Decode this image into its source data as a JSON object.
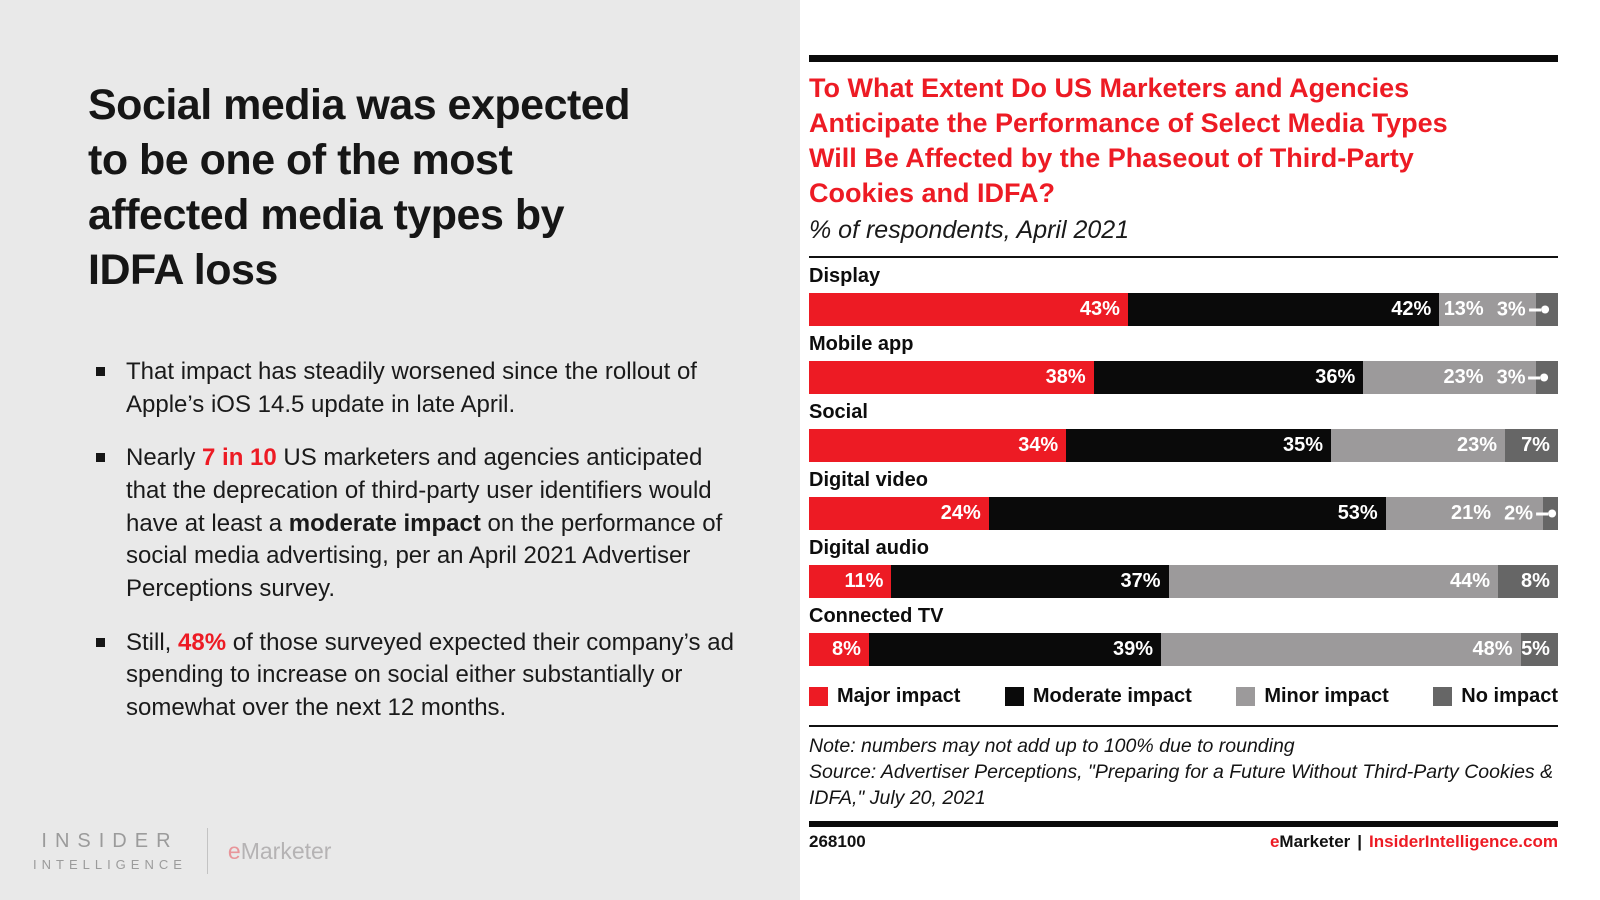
{
  "left_panel": {
    "headline_lines": [
      "Social media was expected",
      "to be one of the most",
      "affected media types by",
      "IDFA loss"
    ],
    "bullets": [
      [
        {
          "t": "That impact has steadily worsened since the rollout of Apple’s iOS 14.5 update in late April.",
          "s": "n"
        }
      ],
      [
        {
          "t": "Nearly ",
          "s": "n"
        },
        {
          "t": "7 in 10",
          "s": "rb"
        },
        {
          "t": " US marketers and agencies anticipated that the deprecation of third-party user identifiers would have at least a ",
          "s": "n"
        },
        {
          "t": "moderate impact",
          "s": "b"
        },
        {
          "t": " on the performance of social media advertising, per an April 2021 Advertiser Perceptions survey.",
          "s": "n"
        }
      ],
      [
        {
          "t": "Still, ",
          "s": "n"
        },
        {
          "t": "48%",
          "s": "rb"
        },
        {
          "t": " of those surveyed expected their company’s ad spending to increase on social either substantially or somewhat over the next 12 months.",
          "s": "n"
        }
      ]
    ],
    "logo": {
      "top": "INSIDER",
      "bottom": "INTELLIGENCE",
      "emarketer_e": "e",
      "emarketer_rest": "Marketer"
    }
  },
  "chart_panel": {
    "title_lines": [
      "To What Extent Do US Marketers and Agencies",
      "Anticipate the Performance of Select Media Types",
      "Will Be Affected by the Phaseout of Third-Party",
      "Cookies and IDFA?"
    ],
    "subtitle": "% of respondents, April 2021",
    "note": "Note: numbers may not add up to 100% due to rounding",
    "source": "Source: Advertiser Perceptions, \"Preparing for a Future Without Third-Party Cookies & IDFA,\" July 20, 2021",
    "chart_id": "268100",
    "footer": {
      "emarketer_e": "e",
      "emarketer_rest": "Marketer",
      "divider": "|",
      "site": "InsiderIntelligence.com"
    }
  },
  "chart_data": {
    "type": "bar",
    "orientation": "horizontal",
    "stacked": true,
    "title": "To What Extent Do US Marketers and Agencies Anticipate the Performance of Select Media Types Will Be Affected by the Phaseout of Third-Party Cookies and IDFA?",
    "subtitle": "% of respondents, April 2021",
    "unit": "%",
    "xlim": [
      0,
      100
    ],
    "grid": false,
    "legend_position": "bottom",
    "categories": [
      "Display",
      "Mobile app",
      "Social",
      "Digital video",
      "Digital audio",
      "Connected TV"
    ],
    "series": [
      {
        "name": "Major impact",
        "color": "#ed1b24",
        "values": [
          43,
          38,
          34,
          24,
          11,
          8
        ]
      },
      {
        "name": "Moderate impact",
        "color": "#0a0a0a",
        "values": [
          42,
          36,
          35,
          53,
          37,
          39
        ]
      },
      {
        "name": "Minor impact",
        "color": "#9c9a9b",
        "values": [
          13,
          23,
          23,
          21,
          44,
          48
        ]
      },
      {
        "name": "No impact",
        "color": "#666666",
        "values": [
          3,
          3,
          7,
          2,
          8,
          5
        ]
      }
    ],
    "callout_rows": [
      0,
      1,
      3
    ],
    "labels_in_bars": true
  }
}
